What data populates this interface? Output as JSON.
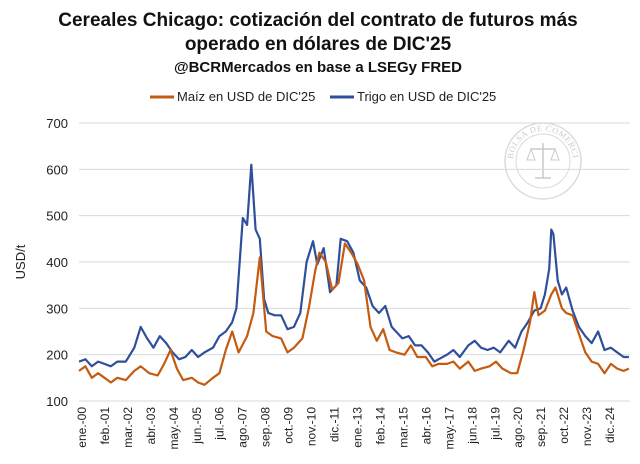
{
  "chart_data": {
    "type": "line",
    "title_line1": "Cereales Chicago: cotización del contrato de futuros más",
    "title_line2": "operado en dólares de DIC'25",
    "subtitle": "@BCRMercados en base a LSEGy FRED",
    "ylabel": "USD/t",
    "xlabel": "",
    "ylim": [
      100,
      700
    ],
    "yticks": [
      100,
      200,
      300,
      400,
      500,
      600,
      700
    ],
    "grid": true,
    "legend_position": "top",
    "xlim": [
      2000.0,
      2025.9
    ],
    "xtick_labels": [
      "ene.-00",
      "feb.-01",
      "mar.-02",
      "abr.-03",
      "may.-04",
      "jun.-05",
      "jul.-06",
      "ago.-07",
      "sep.-08",
      "oct.-09",
      "nov.-10",
      "dic.-11",
      "ene.-13",
      "feb.-14",
      "mar.-15",
      "abr.-16",
      "may.-17",
      "jun.-18",
      "jul.-19",
      "ago.-20",
      "sep.-21",
      "oct.-22",
      "nov.-23",
      "dic.-24"
    ],
    "watermark_text": "BOLSA DE COMERCIO DE ROSARIO",
    "colors": {
      "maiz": "#c55a11",
      "trigo": "#2f4f9c"
    },
    "series": [
      {
        "name": "Maíz en USD de DIC'25",
        "color": "#c55a11",
        "points": [
          [
            2000.0,
            165
          ],
          [
            2000.3,
            175
          ],
          [
            2000.6,
            150
          ],
          [
            2000.9,
            160
          ],
          [
            2001.2,
            150
          ],
          [
            2001.5,
            140
          ],
          [
            2001.8,
            150
          ],
          [
            2002.2,
            145
          ],
          [
            2002.6,
            165
          ],
          [
            2002.9,
            175
          ],
          [
            2003.3,
            160
          ],
          [
            2003.7,
            155
          ],
          [
            2004.0,
            180
          ],
          [
            2004.3,
            210
          ],
          [
            2004.6,
            170
          ],
          [
            2004.9,
            145
          ],
          [
            2005.3,
            150
          ],
          [
            2005.6,
            140
          ],
          [
            2005.9,
            135
          ],
          [
            2006.3,
            150
          ],
          [
            2006.6,
            160
          ],
          [
            2006.9,
            210
          ],
          [
            2007.2,
            250
          ],
          [
            2007.5,
            205
          ],
          [
            2007.9,
            240
          ],
          [
            2008.2,
            290
          ],
          [
            2008.5,
            410
          ],
          [
            2008.8,
            250
          ],
          [
            2009.1,
            240
          ],
          [
            2009.5,
            235
          ],
          [
            2009.8,
            205
          ],
          [
            2010.1,
            215
          ],
          [
            2010.5,
            235
          ],
          [
            2010.8,
            300
          ],
          [
            2011.1,
            380
          ],
          [
            2011.3,
            420
          ],
          [
            2011.6,
            400
          ],
          [
            2011.9,
            340
          ],
          [
            2012.2,
            355
          ],
          [
            2012.5,
            440
          ],
          [
            2012.8,
            420
          ],
          [
            2013.1,
            395
          ],
          [
            2013.4,
            360
          ],
          [
            2013.7,
            260
          ],
          [
            2014.0,
            230
          ],
          [
            2014.3,
            255
          ],
          [
            2014.6,
            210
          ],
          [
            2014.9,
            205
          ],
          [
            2015.3,
            200
          ],
          [
            2015.6,
            220
          ],
          [
            2015.9,
            195
          ],
          [
            2016.3,
            195
          ],
          [
            2016.6,
            175
          ],
          [
            2016.9,
            180
          ],
          [
            2017.3,
            180
          ],
          [
            2017.6,
            185
          ],
          [
            2017.9,
            170
          ],
          [
            2018.3,
            185
          ],
          [
            2018.6,
            165
          ],
          [
            2018.9,
            170
          ],
          [
            2019.3,
            175
          ],
          [
            2019.6,
            185
          ],
          [
            2019.9,
            170
          ],
          [
            2020.3,
            160
          ],
          [
            2020.6,
            160
          ],
          [
            2020.9,
            210
          ],
          [
            2021.2,
            270
          ],
          [
            2021.4,
            335
          ],
          [
            2021.6,
            285
          ],
          [
            2021.9,
            295
          ],
          [
            2022.2,
            330
          ],
          [
            2022.4,
            345
          ],
          [
            2022.7,
            300
          ],
          [
            2022.9,
            290
          ],
          [
            2023.2,
            285
          ],
          [
            2023.5,
            245
          ],
          [
            2023.8,
            205
          ],
          [
            2024.1,
            185
          ],
          [
            2024.4,
            180
          ],
          [
            2024.7,
            160
          ],
          [
            2025.0,
            180
          ],
          [
            2025.3,
            170
          ],
          [
            2025.6,
            165
          ],
          [
            2025.85,
            170
          ]
        ]
      },
      {
        "name": "Trigo en USD de DIC'25",
        "color": "#2f4f9c",
        "points": [
          [
            2000.0,
            185
          ],
          [
            2000.3,
            190
          ],
          [
            2000.6,
            175
          ],
          [
            2000.9,
            185
          ],
          [
            2001.2,
            180
          ],
          [
            2001.5,
            175
          ],
          [
            2001.8,
            185
          ],
          [
            2002.2,
            185
          ],
          [
            2002.6,
            215
          ],
          [
            2002.9,
            260
          ],
          [
            2003.2,
            235
          ],
          [
            2003.5,
            215
          ],
          [
            2003.8,
            240
          ],
          [
            2004.1,
            225
          ],
          [
            2004.4,
            205
          ],
          [
            2004.7,
            190
          ],
          [
            2005.0,
            195
          ],
          [
            2005.3,
            210
          ],
          [
            2005.6,
            195
          ],
          [
            2005.9,
            205
          ],
          [
            2006.3,
            215
          ],
          [
            2006.6,
            240
          ],
          [
            2006.9,
            250
          ],
          [
            2007.2,
            270
          ],
          [
            2007.4,
            300
          ],
          [
            2007.7,
            495
          ],
          [
            2007.9,
            480
          ],
          [
            2008.1,
            610
          ],
          [
            2008.3,
            470
          ],
          [
            2008.5,
            450
          ],
          [
            2008.7,
            320
          ],
          [
            2008.9,
            290
          ],
          [
            2009.2,
            285
          ],
          [
            2009.5,
            285
          ],
          [
            2009.8,
            255
          ],
          [
            2010.1,
            260
          ],
          [
            2010.4,
            290
          ],
          [
            2010.7,
            400
          ],
          [
            2011.0,
            445
          ],
          [
            2011.2,
            395
          ],
          [
            2011.5,
            430
          ],
          [
            2011.8,
            335
          ],
          [
            2012.1,
            350
          ],
          [
            2012.3,
            450
          ],
          [
            2012.6,
            445
          ],
          [
            2012.9,
            420
          ],
          [
            2013.2,
            360
          ],
          [
            2013.5,
            345
          ],
          [
            2013.8,
            305
          ],
          [
            2014.1,
            290
          ],
          [
            2014.4,
            305
          ],
          [
            2014.7,
            260
          ],
          [
            2014.9,
            250
          ],
          [
            2015.2,
            235
          ],
          [
            2015.5,
            240
          ],
          [
            2015.8,
            220
          ],
          [
            2016.1,
            220
          ],
          [
            2016.4,
            205
          ],
          [
            2016.7,
            185
          ],
          [
            2016.9,
            190
          ],
          [
            2017.3,
            200
          ],
          [
            2017.6,
            210
          ],
          [
            2017.9,
            195
          ],
          [
            2018.3,
            220
          ],
          [
            2018.6,
            230
          ],
          [
            2018.9,
            215
          ],
          [
            2019.2,
            210
          ],
          [
            2019.5,
            215
          ],
          [
            2019.8,
            205
          ],
          [
            2020.2,
            230
          ],
          [
            2020.5,
            215
          ],
          [
            2020.8,
            250
          ],
          [
            2021.1,
            270
          ],
          [
            2021.4,
            295
          ],
          [
            2021.7,
            300
          ],
          [
            2021.9,
            330
          ],
          [
            2022.1,
            385
          ],
          [
            2022.2,
            470
          ],
          [
            2022.3,
            460
          ],
          [
            2022.5,
            360
          ],
          [
            2022.7,
            330
          ],
          [
            2022.9,
            345
          ],
          [
            2023.2,
            295
          ],
          [
            2023.5,
            260
          ],
          [
            2023.8,
            240
          ],
          [
            2024.1,
            225
          ],
          [
            2024.4,
            250
          ],
          [
            2024.7,
            210
          ],
          [
            2025.0,
            215
          ],
          [
            2025.3,
            205
          ],
          [
            2025.6,
            195
          ],
          [
            2025.85,
            195
          ]
        ]
      }
    ]
  }
}
